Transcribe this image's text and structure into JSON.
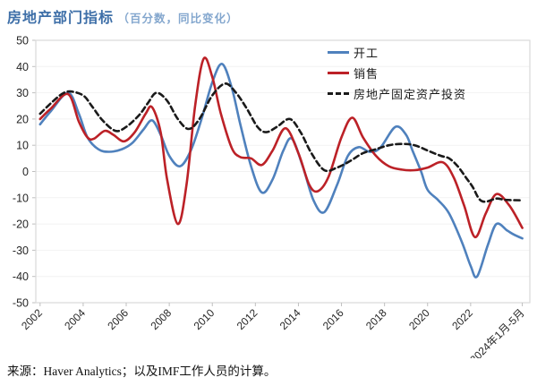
{
  "title": {
    "main": "房地产部门指标",
    "subtitle": "（百分数，同比变化）"
  },
  "source": "来源：Haver Analytics；以及IMF工作人员的计算。",
  "colors": {
    "title_main": "#3e6fa8",
    "title_sub": "#84a7ce",
    "starts_line": "#4f81bd",
    "sales_line": "#bc2127",
    "investment_line": "#1a1a1a",
    "plot_border": "#d9d9d9",
    "gridline": "#f2f2f2",
    "tick": "#bfbfbf",
    "axis_text": "#262626"
  },
  "chart_data": {
    "type": "line",
    "title": "房地产部门指标（百分数，同比变化）",
    "xlabel": "",
    "ylabel": "",
    "ylim": [
      -50,
      50
    ],
    "xlim": [
      2001.8,
      2024.75
    ],
    "grid": "faint-horizontal",
    "legend_position": "inside-top-right",
    "y_ticks": [
      {
        "label": "50",
        "value": 50
      },
      {
        "label": "40",
        "value": 40
      },
      {
        "label": "30",
        "value": 30
      },
      {
        "label": "20",
        "value": 20
      },
      {
        "label": "10",
        "value": 10
      },
      {
        "label": "0",
        "value": 0
      },
      {
        "label": "-10",
        "value": -10
      },
      {
        "label": "-20",
        "value": -20
      },
      {
        "label": "-30",
        "value": -30
      },
      {
        "label": "-40",
        "value": -40
      },
      {
        "label": "-50",
        "value": -50
      }
    ],
    "x_ticks": [
      {
        "label": "2002",
        "year": 2002
      },
      {
        "label": "2004",
        "year": 2004
      },
      {
        "label": "2006",
        "year": 2006
      },
      {
        "label": "2008",
        "year": 2008
      },
      {
        "label": "2010",
        "year": 2010
      },
      {
        "label": "2012",
        "year": 2012
      },
      {
        "label": "2014",
        "year": 2014
      },
      {
        "label": "2016",
        "year": 2016
      },
      {
        "label": "2018",
        "year": 2018
      },
      {
        "label": "2020",
        "year": 2020
      },
      {
        "label": "2022",
        "year": 2022
      },
      {
        "label": "2024年1月-5月",
        "year": 2024.4
      }
    ],
    "series": [
      {
        "key": "starts",
        "name": "开工",
        "style": "solid",
        "color": "#4f81bd",
        "points": [
          [
            2002.0,
            18
          ],
          [
            2002.5,
            23
          ],
          [
            2003.3,
            30
          ],
          [
            2003.8,
            22
          ],
          [
            2004.2,
            13
          ],
          [
            2004.7,
            8.5
          ],
          [
            2005.2,
            7.5
          ],
          [
            2005.8,
            8.5
          ],
          [
            2006.3,
            11
          ],
          [
            2006.8,
            16
          ],
          [
            2007.2,
            19.5
          ],
          [
            2007.6,
            14
          ],
          [
            2008.0,
            6
          ],
          [
            2008.5,
            2
          ],
          [
            2009.0,
            8
          ],
          [
            2009.5,
            20
          ],
          [
            2010.0,
            34
          ],
          [
            2010.45,
            41
          ],
          [
            2010.9,
            32
          ],
          [
            2011.3,
            18
          ],
          [
            2011.8,
            2
          ],
          [
            2012.3,
            -8
          ],
          [
            2012.8,
            -3
          ],
          [
            2013.3,
            8
          ],
          [
            2013.7,
            12.5
          ],
          [
            2014.2,
            2
          ],
          [
            2014.7,
            -11
          ],
          [
            2015.2,
            -15.5
          ],
          [
            2015.8,
            -5
          ],
          [
            2016.3,
            6
          ],
          [
            2016.8,
            9.3
          ],
          [
            2017.3,
            7.5
          ],
          [
            2017.8,
            9
          ],
          [
            2018.5,
            17
          ],
          [
            2019.0,
            14
          ],
          [
            2019.3,
            8
          ],
          [
            2019.7,
            0
          ],
          [
            2020.0,
            -7
          ],
          [
            2020.5,
            -11
          ],
          [
            2021.0,
            -16
          ],
          [
            2021.6,
            -27
          ],
          [
            2022.0,
            -36
          ],
          [
            2022.3,
            -40
          ],
          [
            2022.8,
            -28
          ],
          [
            2023.2,
            -20
          ],
          [
            2023.7,
            -22.5
          ],
          [
            2024.0,
            -24
          ],
          [
            2024.4,
            -25.5
          ]
        ]
      },
      {
        "key": "sales",
        "name": "销售",
        "style": "solid",
        "color": "#bc2127",
        "points": [
          [
            2002.0,
            20
          ],
          [
            2002.5,
            24
          ],
          [
            2003.3,
            29.5
          ],
          [
            2003.8,
            19
          ],
          [
            2004.2,
            13
          ],
          [
            2004.5,
            12.5
          ],
          [
            2005.0,
            15.5
          ],
          [
            2005.4,
            14
          ],
          [
            2005.9,
            11.5
          ],
          [
            2006.4,
            15
          ],
          [
            2006.9,
            22
          ],
          [
            2007.2,
            24.5
          ],
          [
            2007.6,
            15
          ],
          [
            2007.9,
            -3
          ],
          [
            2008.4,
            -20
          ],
          [
            2008.8,
            -5
          ],
          [
            2009.2,
            25
          ],
          [
            2009.6,
            43
          ],
          [
            2010.0,
            36
          ],
          [
            2010.4,
            22
          ],
          [
            2010.9,
            9
          ],
          [
            2011.3,
            5.5
          ],
          [
            2011.8,
            5
          ],
          [
            2012.3,
            2.5
          ],
          [
            2012.8,
            8
          ],
          [
            2013.4,
            16.5
          ],
          [
            2014.0,
            7
          ],
          [
            2014.5,
            -5
          ],
          [
            2014.9,
            -7.5
          ],
          [
            2015.4,
            -2
          ],
          [
            2016.0,
            13
          ],
          [
            2016.5,
            20.5
          ],
          [
            2017.0,
            13
          ],
          [
            2017.6,
            6
          ],
          [
            2018.2,
            2
          ],
          [
            2018.8,
            0.7
          ],
          [
            2019.4,
            0.5
          ],
          [
            2020.0,
            1.5
          ],
          [
            2020.7,
            3.5
          ],
          [
            2021.2,
            -2
          ],
          [
            2021.7,
            -13
          ],
          [
            2022.2,
            -25
          ],
          [
            2022.7,
            -16
          ],
          [
            2023.2,
            -8.6
          ],
          [
            2023.8,
            -13
          ],
          [
            2024.4,
            -21.5
          ]
        ]
      },
      {
        "key": "investment",
        "name": "房地产固定资产投资",
        "style": "dashed",
        "color": "#1a1a1a",
        "points": [
          [
            2002.0,
            22
          ],
          [
            2002.5,
            26
          ],
          [
            2003.0,
            29.5
          ],
          [
            2003.4,
            30.5
          ],
          [
            2004.0,
            29
          ],
          [
            2004.4,
            25
          ],
          [
            2004.9,
            19.5
          ],
          [
            2005.5,
            15.5
          ],
          [
            2006.0,
            17
          ],
          [
            2006.6,
            21.5
          ],
          [
            2007.0,
            26
          ],
          [
            2007.4,
            30
          ],
          [
            2007.9,
            27
          ],
          [
            2008.4,
            20
          ],
          [
            2008.9,
            16.2
          ],
          [
            2009.4,
            20
          ],
          [
            2010.0,
            29
          ],
          [
            2010.6,
            33.5
          ],
          [
            2011.1,
            30
          ],
          [
            2011.6,
            24
          ],
          [
            2012.1,
            17
          ],
          [
            2012.5,
            15
          ],
          [
            2013.0,
            17
          ],
          [
            2013.6,
            20
          ],
          [
            2014.1,
            15
          ],
          [
            2014.6,
            7
          ],
          [
            2015.2,
            0.5
          ],
          [
            2015.8,
            1.5
          ],
          [
            2016.4,
            4
          ],
          [
            2017.0,
            7
          ],
          [
            2017.6,
            8.5
          ],
          [
            2018.2,
            10
          ],
          [
            2018.8,
            10.5
          ],
          [
            2019.4,
            10
          ],
          [
            2020.0,
            8
          ],
          [
            2020.6,
            6
          ],
          [
            2021.0,
            5
          ],
          [
            2021.4,
            2
          ],
          [
            2021.8,
            -2.5
          ],
          [
            2022.1,
            -6
          ],
          [
            2022.4,
            -10.5
          ],
          [
            2022.7,
            -11.5
          ],
          [
            2023.2,
            -10.3
          ],
          [
            2023.6,
            -10.8
          ],
          [
            2024.4,
            -11
          ]
        ]
      }
    ]
  }
}
